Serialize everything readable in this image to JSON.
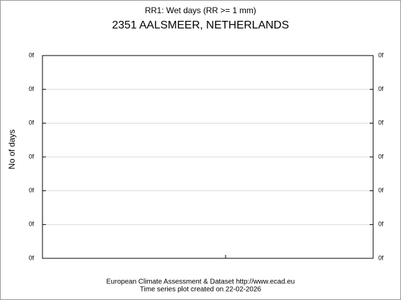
{
  "chart_data": {
    "type": "line",
    "title": "RR1: Wet days (RR >= 1 mm)",
    "subtitle": "2351 AALSMEER, NETHERLANDS",
    "ylabel": "No of days",
    "footer": [
      "European Climate Assessment & Dataset  http://www.ecad.eu",
      "Time series plot created on 22-02-2026"
    ],
    "series": [],
    "ylim": [
      0,
      6
    ],
    "yticks": [
      {
        "value": 0,
        "label": "0f"
      },
      {
        "value": 1,
        "label": "0f"
      },
      {
        "value": 2,
        "label": "0f"
      },
      {
        "value": 3,
        "label": "0f"
      },
      {
        "value": 4,
        "label": "0f"
      },
      {
        "value": 5,
        "label": "0f"
      },
      {
        "value": 6,
        "label": "0f"
      }
    ],
    "grid": true
  }
}
